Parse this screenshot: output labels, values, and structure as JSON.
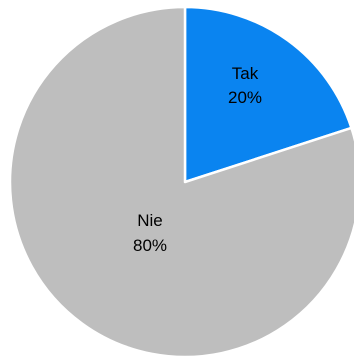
{
  "chart_data": {
    "type": "pie",
    "title": "",
    "start_angle_deg": 0,
    "direction": "clockwise",
    "slices": [
      {
        "name": "Tak",
        "value": 20,
        "label": "20%",
        "color": "#0A84F0"
      },
      {
        "name": "Nie",
        "value": 80,
        "label": "80%",
        "color": "#BEBEBE"
      }
    ],
    "slice_border_color": "#FFFFFF",
    "legend": "none"
  }
}
